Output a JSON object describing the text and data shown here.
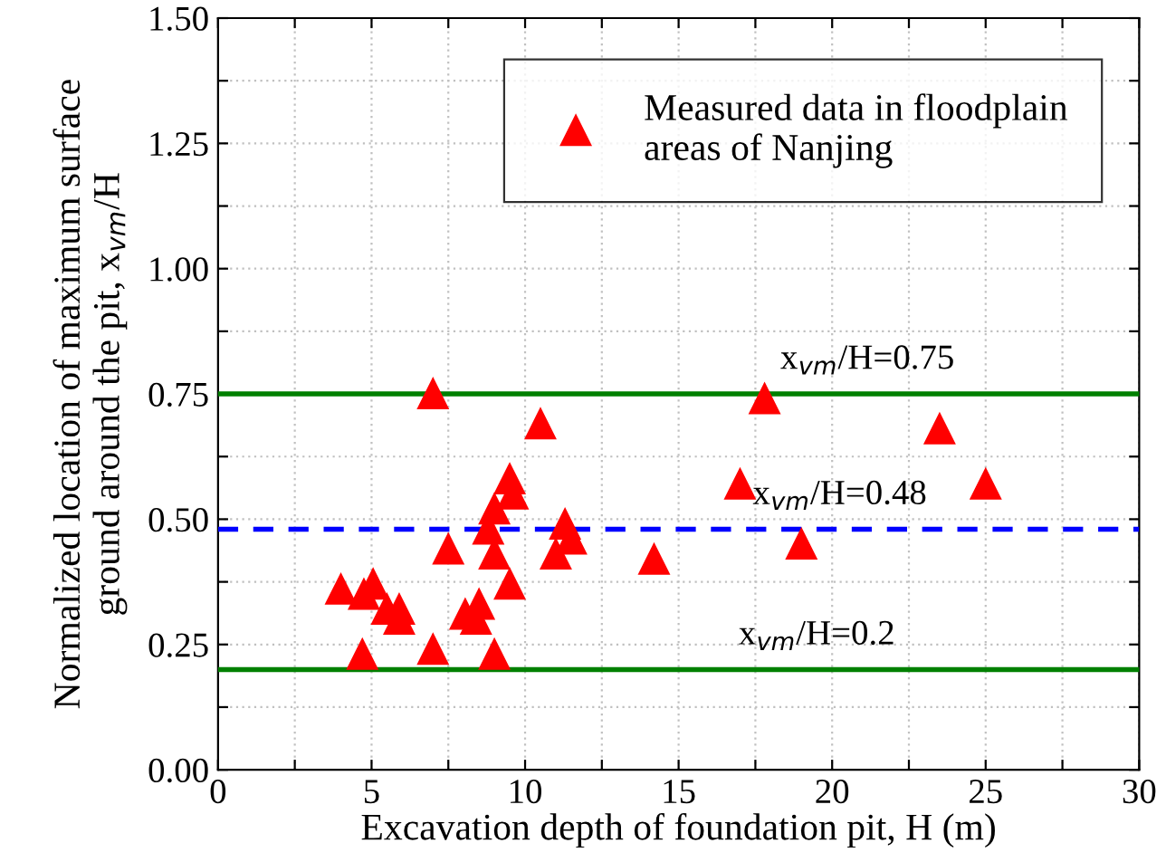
{
  "chart_data": {
    "type": "scatter",
    "xlabel": "Excavation depth of foundation pit, H (m)",
    "ylabel": "Normalized location of maximum surface\nground around the pit, x$_{vm}$/H",
    "x": [
      7.0,
      17.8,
      23.5,
      25.0,
      17.0,
      10.5,
      9.5,
      9.6,
      9.0,
      8.8,
      11.3,
      11.5,
      11.0,
      14.2,
      19.0,
      7.5,
      9.0,
      9.5,
      4.0,
      4.75,
      5.05,
      5.5,
      5.9,
      5.9,
      8.05,
      8.5,
      8.4,
      4.7,
      7.0,
      9.0
    ],
    "series": [
      {
        "name": "Measured data in floodplain\nareas of Nanjing",
        "color": "#ff0000",
        "values": [
          0.75,
          0.74,
          0.68,
          0.57,
          0.57,
          0.69,
          0.58,
          0.55,
          0.52,
          0.48,
          0.49,
          0.46,
          0.43,
          0.42,
          0.45,
          0.44,
          0.43,
          0.37,
          0.36,
          0.35,
          0.37,
          0.32,
          0.32,
          0.3,
          0.31,
          0.33,
          0.3,
          0.23,
          0.24,
          0.23
        ]
      }
    ],
    "xlim": [
      0,
      30
    ],
    "xticks": [
      0,
      {
        "value": 2.5,
        "label": null
      },
      5,
      {
        "value": 7.5,
        "label": null
      },
      10,
      {
        "value": 12.5,
        "label": null
      },
      15,
      {
        "value": 17.5,
        "label": null
      },
      20,
      {
        "value": 22.5,
        "label": null
      },
      25,
      {
        "value": 27.5,
        "label": null
      },
      30
    ],
    "ylim": [
      0,
      1.5
    ],
    "yticks": [
      {
        "value": 0,
        "label": "0.00"
      },
      {
        "value": 0.125,
        "label": null
      },
      {
        "value": 0.25,
        "label": "0.25"
      },
      {
        "value": 0.375,
        "label": null
      },
      {
        "value": 0.5,
        "label": "0.50"
      },
      {
        "value": 0.625,
        "label": null
      },
      {
        "value": 0.75,
        "label": "0.75"
      },
      {
        "value": 0.875,
        "label": null
      },
      {
        "value": 1.0,
        "label": "1.00"
      },
      {
        "value": 1.125,
        "label": null
      },
      {
        "value": 1.25,
        "label": "1.25"
      },
      {
        "value": 1.375,
        "label": null
      },
      {
        "value": 1.5,
        "label": "1.50"
      }
    ],
    "ref_lines": [
      {
        "axis": "y",
        "value": 0.75,
        "label": "x$_{vm}$/H=0.75",
        "color": "#008000",
        "line_style": "solid"
      },
      {
        "axis": "y",
        "value": 0.48,
        "label": "x$_{vm}$/H=0.48",
        "color": "#0000ff",
        "line_style": "dashed"
      },
      {
        "axis": "y",
        "value": 0.2,
        "label": "x$_{vm}$/H=0.2",
        "color": "#008000",
        "line_style": "solid"
      }
    ],
    "grid": true,
    "legend": "top right",
    "marker": "triangle"
  }
}
